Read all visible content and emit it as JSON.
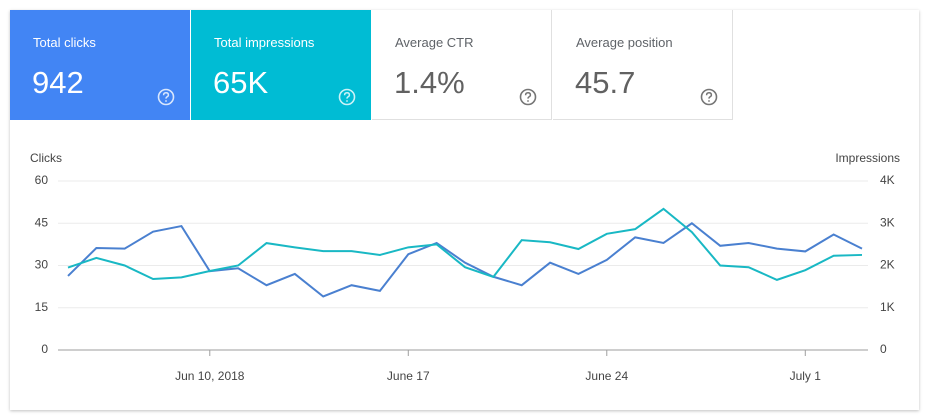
{
  "cards": [
    {
      "label": "Total clicks",
      "value": "942"
    },
    {
      "label": "Total impressions",
      "value": "65K"
    },
    {
      "label": "Average CTR",
      "value": "1.4%"
    },
    {
      "label": "Average position",
      "value": "45.7"
    }
  ],
  "chart_data": {
    "type": "line",
    "ylabel": "Clicks",
    "y2label": "Impressions",
    "x": [
      "2018-06-05",
      "2018-06-06",
      "2018-06-07",
      "2018-06-08",
      "2018-06-09",
      "2018-06-10",
      "2018-06-11",
      "2018-06-12",
      "2018-06-13",
      "2018-06-14",
      "2018-06-15",
      "2018-06-16",
      "2018-06-17",
      "2018-06-18",
      "2018-06-19",
      "2018-06-20",
      "2018-06-21",
      "2018-06-22",
      "2018-06-23",
      "2018-06-24",
      "2018-06-25",
      "2018-06-26",
      "2018-06-27",
      "2018-06-28",
      "2018-06-29",
      "2018-06-30",
      "2018-07-01",
      "2018-07-02",
      "2018-07-03"
    ],
    "xlim": [
      "2018-06-05",
      "2018-07-03"
    ],
    "xticks": [
      {
        "value": "2018-06-10",
        "label": "Jun 10, 2018"
      },
      {
        "value": "2018-06-17",
        "label": "June 17"
      },
      {
        "value": "2018-06-24",
        "label": "June 24"
      },
      {
        "value": "2018-07-01",
        "label": "July 1"
      }
    ],
    "ylim": [
      0,
      60
    ],
    "yticks": [
      0,
      15,
      30,
      45,
      60
    ],
    "y2lim": [
      0,
      4000
    ],
    "y2ticks": [
      0,
      {
        "value": 1000,
        "label": "1K"
      },
      {
        "value": 2000,
        "label": "2K"
      },
      {
        "value": 3000,
        "label": "3K"
      },
      {
        "value": 4000,
        "label": "4K"
      }
    ],
    "grid": true,
    "series": [
      {
        "name": "Clicks",
        "color": "#4a80d0",
        "values": [
          26.3,
          36.2,
          36,
          42,
          44,
          28,
          29,
          23,
          27,
          19,
          23,
          21,
          34,
          38,
          31,
          26,
          23,
          31,
          27,
          32,
          40,
          38,
          45,
          37,
          38,
          36,
          35,
          41,
          36
        ]
      },
      {
        "name": "Impressions",
        "color": "#19b8c4",
        "axis": "y2",
        "values": [
          1950,
          2180,
          2000,
          1680,
          1720,
          1870,
          2000,
          2530,
          2430,
          2340,
          2340,
          2250,
          2430,
          2500,
          1960,
          1730,
          2600,
          2550,
          2390,
          2750,
          2860,
          3340,
          2790,
          2000,
          1960,
          1660,
          1890,
          2230,
          2250
        ]
      }
    ]
  }
}
